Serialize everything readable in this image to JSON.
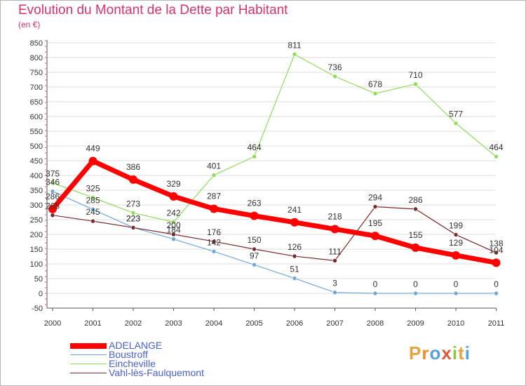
{
  "header": {
    "title": "Evolution du Montant de la Dette par Habitant",
    "subtitle": "(en €)"
  },
  "brand": {
    "text": "Proxiti",
    "letters": [
      "P",
      "r",
      "o",
      "x",
      "i",
      "t",
      "i"
    ]
  },
  "colors": {
    "title": "#d6336c",
    "legend_text": "#4a62d0",
    "brand_letters": [
      "#e8a33d",
      "#f08c2e",
      "#5aa0d8",
      "#e05a3a",
      "#8cc63f",
      "#e8a33d",
      "#5aa0d8"
    ]
  },
  "chart_data": {
    "type": "line",
    "title": "Evolution du Montant de la Dette par Habitant",
    "subtitle": "(en €)",
    "x": [
      "2000",
      "2001",
      "2002",
      "2003",
      "2004",
      "2005",
      "2006",
      "2007",
      "2008",
      "2009",
      "2010",
      "2011"
    ],
    "ylim": [
      -50,
      850
    ],
    "yticks": [
      "-50",
      "0",
      "50",
      "100",
      "150",
      "200",
      "250",
      "300",
      "350",
      "400",
      "450",
      "500",
      "550",
      "600",
      "650",
      "700",
      "750",
      "800",
      "850"
    ],
    "grid": "horizontal",
    "legend_position": "bottom-left",
    "series": [
      {
        "name": "ADELANGE",
        "color": "#ff0000",
        "width": 7,
        "marker": 6,
        "values": [
          286,
          449,
          386,
          329,
          287,
          263,
          241,
          218,
          195,
          155,
          129,
          104
        ],
        "labels": [
          "286",
          "449",
          "386",
          "329",
          "287",
          "263",
          "241",
          "218",
          "195",
          "155",
          "129",
          "104"
        ]
      },
      {
        "name": "Boustroff",
        "color": "#6fa8d8",
        "width": 1.2,
        "marker": 3,
        "values": [
          346,
          285,
          223,
          184,
          142,
          97,
          51,
          3,
          0,
          0,
          0,
          0
        ],
        "labels": [
          "346",
          "285",
          "223",
          "184",
          "142",
          "97",
          "51",
          "3",
          "0",
          "0",
          "0",
          "0"
        ]
      },
      {
        "name": "Eincheville",
        "color": "#8fdc5a",
        "width": 1.2,
        "marker": 3,
        "values": [
          375,
          325,
          273,
          242,
          401,
          464,
          811,
          736,
          678,
          710,
          577,
          464
        ],
        "labels": [
          "375",
          "325",
          "273",
          "242",
          "401",
          "464",
          "811",
          "736",
          "678",
          "710",
          "577",
          "464"
        ]
      },
      {
        "name": "Vahl-lès-Faulquemont",
        "color": "#7a2a2a",
        "width": 1.2,
        "marker": 3,
        "values": [
          265,
          245,
          223,
          200,
          176,
          150,
          126,
          111,
          294,
          286,
          199,
          138
        ],
        "labels": [
          "265",
          "245",
          "223",
          "200",
          "176",
          "150",
          "126",
          "111",
          "294",
          "286",
          "199",
          "138"
        ]
      }
    ]
  }
}
